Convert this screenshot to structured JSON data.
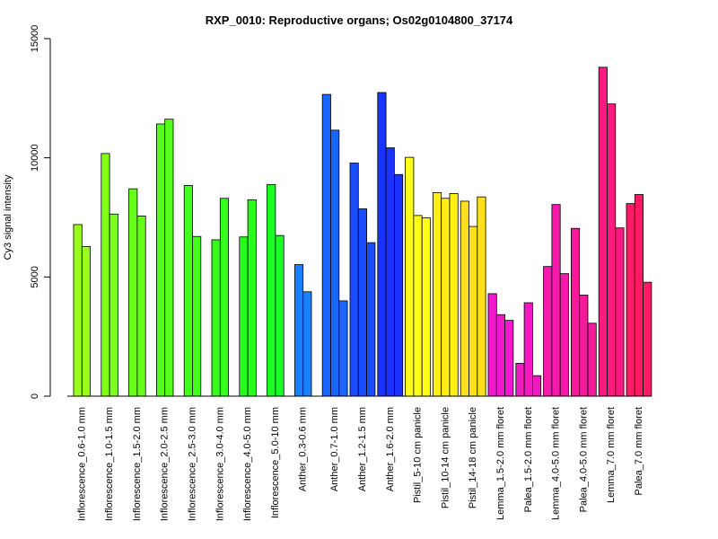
{
  "chart_data": {
    "type": "bar",
    "title": "RXP_0010: Reproductive organs; Os02g0104800_37174",
    "xlabel": "",
    "ylabel": "Cy3 signal intensity",
    "ylim": [
      0,
      15000
    ],
    "yticks": [
      0,
      5000,
      10000,
      15000
    ],
    "grid": false,
    "legend": "none",
    "groups": [
      {
        "label": "Inflorescence_0.6-1.0 mm",
        "color": "#99FF1A",
        "values": [
          7200,
          6280
        ]
      },
      {
        "label": "Inflorescence_1.0-1.5 mm",
        "color": "#80FF1A",
        "values": [
          10180,
          7640
        ]
      },
      {
        "label": "Inflorescence_1.5-2.0 mm",
        "color": "#66FF1A",
        "values": [
          8700,
          7560
        ]
      },
      {
        "label": "Inflorescence_2.0-2.5 mm",
        "color": "#55FF1A",
        "values": [
          11420,
          11620
        ]
      },
      {
        "label": "Inflorescence_2.5-3.0 mm",
        "color": "#40FF1A",
        "values": [
          8840,
          6700
        ]
      },
      {
        "label": "Inflorescence_3.0-4.0 mm",
        "color": "#33FF1A",
        "values": [
          6560,
          8300
        ]
      },
      {
        "label": "Inflorescence_4.0-5.0 mm",
        "color": "#26FF1A",
        "values": [
          6680,
          8240
        ]
      },
      {
        "label": "Inflorescence_5.0-10 mm",
        "color": "#1AFF26",
        "values": [
          8880,
          6740
        ]
      },
      {
        "label": "Anther_0.3-0.6 mm",
        "color": "#1A80FF",
        "values": [
          5520,
          4380
        ]
      },
      {
        "label": "Anther_0.7-1.0 mm",
        "color": "#1A66FF",
        "values": [
          12660,
          11160,
          4000
        ]
      },
      {
        "label": "Anther_1.2-1.5 mm",
        "color": "#1A4DFF",
        "values": [
          9780,
          7860,
          6440
        ]
      },
      {
        "label": "Anther_1.6-2.0 mm",
        "color": "#1A33FF",
        "values": [
          12740,
          10420,
          9300
        ]
      },
      {
        "label": "Pistil_5-10 cm panicle",
        "color": "#FFFF1A",
        "values": [
          10020,
          7580,
          7480
        ]
      },
      {
        "label": "Pistil_10-14 cm panicle",
        "color": "#FFEE1A",
        "values": [
          8540,
          8300,
          8500
        ]
      },
      {
        "label": "Pistil_14-18 cm panicle",
        "color": "#FFE01A",
        "values": [
          8180,
          7120,
          8360
        ]
      },
      {
        "label": "Lemma_1.5-2.0 mm floret",
        "color": "#F01ACC",
        "values": [
          4300,
          3420,
          3180
        ]
      },
      {
        "label": "Palea_1.5-2.0 mm floret",
        "color": "#F01ABF",
        "values": [
          1380,
          3920,
          860
        ]
      },
      {
        "label": "Lemma_4.0-5.0 mm floret",
        "color": "#F51AAA",
        "values": [
          5440,
          8040,
          5140
        ]
      },
      {
        "label": "Palea_4.0-5.0 mm floret",
        "color": "#F51A99",
        "values": [
          7040,
          4240,
          3060
        ]
      },
      {
        "label": "Lemma_7.0 mm floret",
        "color": "#FA1A80",
        "values": [
          13800,
          12260,
          7060
        ]
      },
      {
        "label": "Palea_7.0 mm floret",
        "color": "#FF1A66",
        "values": [
          8080,
          8460,
          4780
        ]
      }
    ]
  }
}
